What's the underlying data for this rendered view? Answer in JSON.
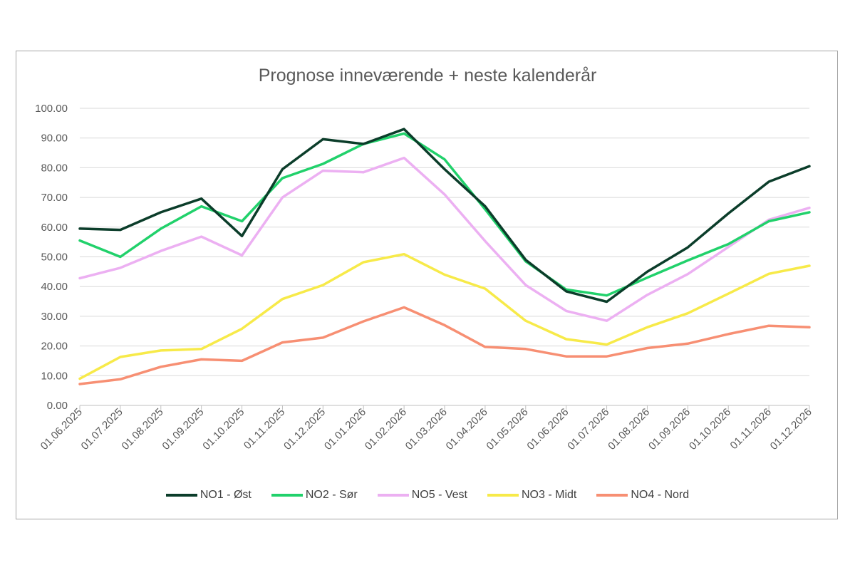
{
  "chart_data": {
    "type": "line",
    "title": "Prognose inneværende + neste kalenderår",
    "xlabel": "",
    "ylabel": "",
    "ylim": [
      0,
      100
    ],
    "y_ticks": [
      "0.00",
      "10.00",
      "20.00",
      "30.00",
      "40.00",
      "50.00",
      "60.00",
      "70.00",
      "80.00",
      "90.00",
      "100.00"
    ],
    "grid": true,
    "legend_position": "bottom",
    "categories": [
      "01.06.2025",
      "01.07.2025",
      "01.08.2025",
      "01.09.2025",
      "01.10.2025",
      "01.11.2025",
      "01.12.2025",
      "01.01.2026",
      "01.02.2026",
      "01.03.2026",
      "01.04.2026",
      "01.05.2026",
      "01.06.2026",
      "01.07.2026",
      "01.08.2026",
      "01.09.2026",
      "01.10.2026",
      "01.11.2026",
      "01.12.2026"
    ],
    "series": [
      {
        "name": "NO1 - Øst",
        "color": "#0b3d2a",
        "values": [
          59.5,
          59.1,
          65.0,
          69.6,
          57.0,
          79.5,
          89.6,
          88.0,
          93.0,
          79.5,
          67.0,
          49.0,
          38.4,
          34.9,
          45.0,
          53.2,
          64.6,
          75.3,
          80.5
        ]
      },
      {
        "name": "NO2 - Sør",
        "color": "#21d16b",
        "values": [
          55.5,
          50.0,
          59.5,
          67.0,
          62.0,
          76.5,
          81.3,
          88.0,
          91.5,
          82.8,
          66.0,
          48.5,
          39.0,
          37.0,
          43.0,
          48.8,
          54.3,
          62.0,
          65.0
        ]
      },
      {
        "name": "NO5 - Vest",
        "color": "#ecb0f2",
        "values": [
          42.8,
          46.3,
          52.0,
          56.8,
          50.5,
          70.0,
          79.0,
          78.5,
          83.3,
          71.0,
          55.3,
          40.5,
          31.8,
          28.5,
          37.2,
          44.2,
          53.3,
          62.5,
          66.5
        ]
      },
      {
        "name": "NO3 - Midt",
        "color": "#f7ea49",
        "values": [
          9.0,
          16.3,
          18.5,
          19.0,
          25.8,
          35.8,
          40.5,
          48.2,
          50.9,
          44.0,
          39.3,
          28.5,
          22.3,
          20.5,
          26.3,
          31.0,
          37.6,
          44.3,
          47.0
        ]
      },
      {
        "name": "NO4 - Nord",
        "color": "#f78f73",
        "values": [
          7.2,
          8.8,
          13.0,
          15.5,
          15.0,
          21.2,
          22.8,
          28.3,
          33.0,
          27.0,
          19.7,
          19.0,
          16.5,
          16.5,
          19.3,
          20.8,
          24.0,
          26.8,
          26.3
        ]
      }
    ]
  }
}
